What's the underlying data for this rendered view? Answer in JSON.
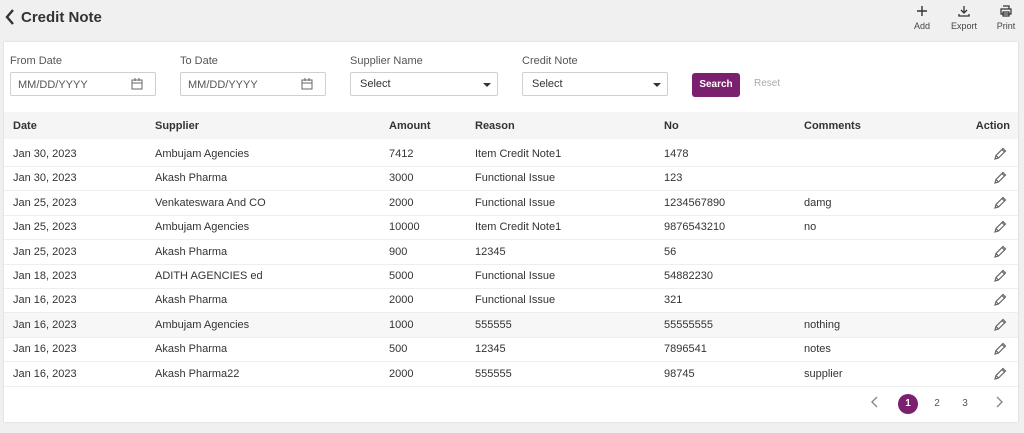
{
  "header": {
    "title": "Credit Note",
    "actions": [
      "Add",
      "Export",
      "Print"
    ]
  },
  "filters": [
    {
      "label": "From Date",
      "placeholder": "MM/DD/YYYY"
    },
    {
      "label": "To Date",
      "placeholder": "MM/DD/YYYY"
    },
    {
      "label": "Supplier Name",
      "value": "Select"
    },
    {
      "label": "Credit Note",
      "value": "Select"
    }
  ],
  "buttons": {
    "search": "Search",
    "reset": "Reset"
  },
  "table": {
    "columns": [
      "Date",
      "Supplier",
      "Amount",
      "Reason",
      "No",
      "Comments",
      "Action"
    ],
    "rows": [
      {
        "date": "Jan 30, 2023",
        "supplier": "Ambujam Agencies",
        "amount": 7412,
        "reason": "Item Credit Note1",
        "no": "1478"
      },
      {
        "date": "Jan 30, 2023",
        "supplier": "Akash Pharma",
        "amount": 3000,
        "reason": "Functional Issue",
        "no": "123"
      },
      {
        "date": "Jan 25, 2023",
        "supplier": "Venkateswara And CO",
        "amount": 2000,
        "reason": "Functional Issue",
        "no": "1234567890",
        "comments": "damg"
      },
      {
        "date": "Jan 25, 2023",
        "supplier": "Ambujam Agencies",
        "amount": 10000,
        "reason": "Item Credit Note1",
        "no": "9876543210",
        "comments": "no"
      },
      {
        "date": "Jan 25, 2023",
        "supplier": "Akash Pharma",
        "amount": 900,
        "reason": "12345",
        "no": "56"
      },
      {
        "date": "Jan 18, 2023",
        "supplier": "ADITH AGENCIES ed",
        "amount": 5000,
        "reason": "Functional Issue",
        "no": "54882230"
      },
      {
        "date": "Jan 16, 2023",
        "supplier": "Akash Pharma",
        "amount": 2000,
        "reason": "Functional Issue",
        "no": "321"
      },
      {
        "date": "Jan 16, 2023",
        "supplier": "Ambujam Agencies",
        "amount": 1000,
        "reason": "555555",
        "no": "55555555",
        "comments": "nothing"
      },
      {
        "date": "Jan 16, 2023",
        "supplier": "Akash Pharma",
        "amount": 500,
        "reason": "12345",
        "no": "7896541",
        "comments": "notes"
      },
      {
        "date": "Jan 16, 2023",
        "supplier": "Akash Pharma22",
        "amount": 2000,
        "reason": "555555",
        "no": "98745",
        "comments": "supplier"
      }
    ]
  },
  "pagination": {
    "pages": [
      1,
      2,
      3
    ],
    "current_page": 1
  }
}
